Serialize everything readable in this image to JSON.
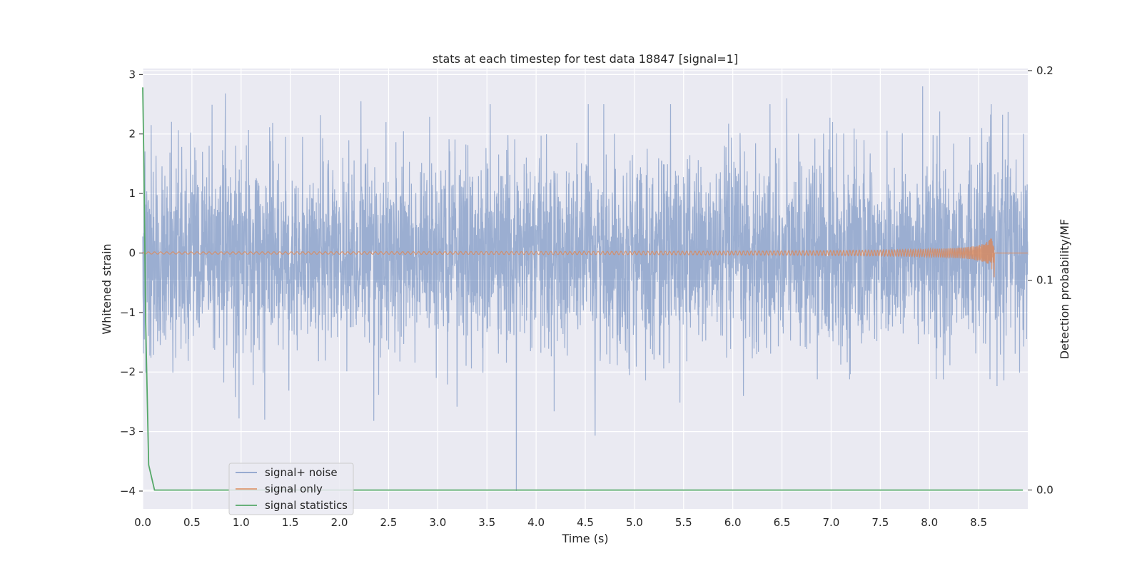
{
  "chart_data": {
    "type": "line",
    "title": "stats at each timestep for test data 18847 [signal=1]",
    "xlabel": "Time (s)",
    "ylabel": "Whitened strain",
    "y2label": "Detection probability/MF",
    "xlim": [
      0.0,
      9.0
    ],
    "ylim": [
      -4.3,
      3.1
    ],
    "y2lim": [
      -0.009,
      0.201
    ],
    "x_ticks": [
      "0.0",
      "0.5",
      "1.0",
      "1.5",
      "2.0",
      "2.5",
      "3.0",
      "3.5",
      "4.0",
      "4.5",
      "5.0",
      "5.5",
      "6.0",
      "6.5",
      "7.0",
      "7.5",
      "8.0",
      "8.5"
    ],
    "y_ticks": [
      "−4",
      "−3",
      "−2",
      "−1",
      "0",
      "1",
      "2",
      "3"
    ],
    "y2_ticks": [
      "0.0",
      "0.1",
      "0.2"
    ],
    "grid": true,
    "legend_position": "lower-left",
    "background": "#eaeaf2",
    "series": [
      {
        "name": "signal+ noise",
        "axis": "left",
        "color": "#4c72b0",
        "description_range": [
          -4.0,
          2.8
        ],
        "peak_samples": [
          {
            "x": 0.84,
            "y": 2.68
          },
          {
            "x": 0.98,
            "y": -2.78
          },
          {
            "x": 1.24,
            "y": -2.8
          },
          {
            "x": 2.22,
            "y": 2.55
          },
          {
            "x": 2.35,
            "y": -2.82
          },
          {
            "x": 3.8,
            "y": -4.0
          },
          {
            "x": 4.6,
            "y": -3.07
          },
          {
            "x": 6.55,
            "y": 2.6
          },
          {
            "x": 7.93,
            "y": 2.8
          },
          {
            "x": 8.8,
            "y": 2.37
          }
        ]
      },
      {
        "name": "signal only",
        "axis": "left",
        "color": "#dd8452",
        "chirp_end_x": 8.66,
        "chirp_peak_amplitude": 0.5
      },
      {
        "name": "signal statistics",
        "axis": "right",
        "color": "#55a868",
        "x": [
          0.0,
          0.01,
          0.02,
          0.03,
          0.06,
          0.12,
          0.2,
          1.0,
          2.0,
          3.0,
          4.0,
          5.0,
          6.0,
          7.0,
          8.0,
          8.95
        ],
        "y": [
          0.192,
          0.16,
          0.12,
          0.08,
          0.012,
          0.0,
          0.0,
          0.0,
          0.0,
          0.0,
          0.0,
          0.0,
          0.0,
          0.0,
          0.0,
          0.0
        ]
      }
    ]
  }
}
